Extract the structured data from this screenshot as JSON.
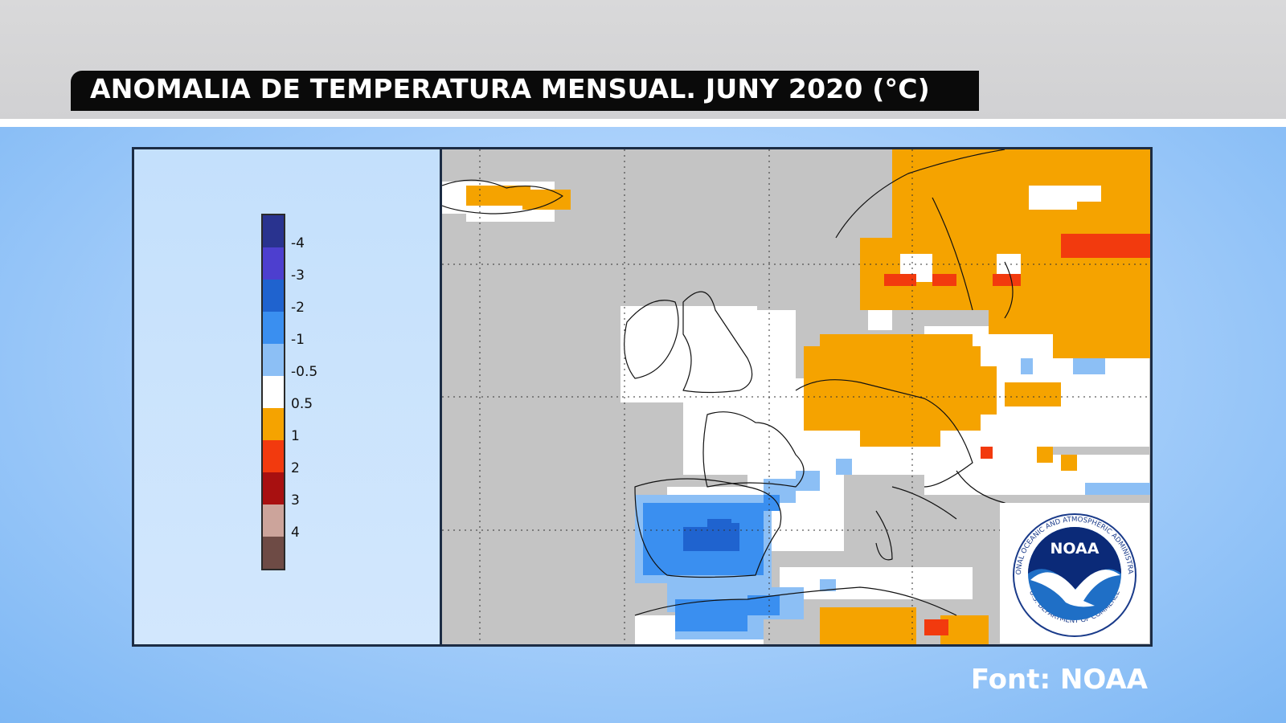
{
  "title": "ANOMALIA DE TEMPERATURA MENSUAL. JUNY 2020 (°C)",
  "source": "Font: NOAA",
  "legend": {
    "labels": [
      "-4",
      "-3",
      "-2",
      "-1",
      "-0.5",
      "0.5",
      "1",
      "2",
      "3",
      "4"
    ],
    "colors": [
      "#29338f",
      "#4d3fcf",
      "#1f63cf",
      "#3a8ff0",
      "#8cbff5",
      "#ffffff",
      "#f5a300",
      "#f23a0e",
      "#a81010",
      "#cca49b",
      "#6e4b45"
    ]
  },
  "map": {
    "colors": {
      "no_data": "#c4c4c4",
      "warm_1": "#f5a300",
      "warm_2": "#f23a0e",
      "neutral": "#ffffff",
      "cool_05": "#8cbff5",
      "cool_1": "#3a8ff0",
      "cool_2": "#1f63cf",
      "coast": "#111111",
      "graticule": "#333333"
    }
  },
  "logo": {
    "name": "NOAA",
    "ring_text_top": "NATIONAL OCEANIC AND ATMOSPHERIC ADMINISTRATION",
    "ring_text_bottom": "U.S. DEPARTMENT OF COMMERCE"
  }
}
